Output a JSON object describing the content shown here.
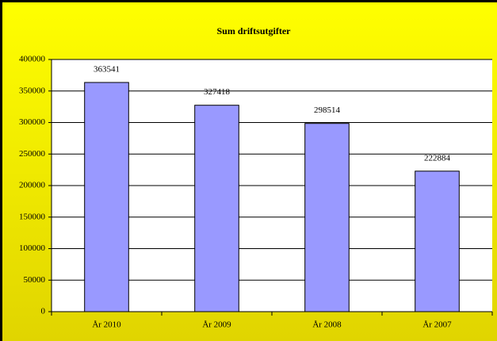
{
  "chart_data": {
    "type": "bar",
    "title": "Sum driftsutgifter",
    "categories": [
      "År 2010",
      "År 2009",
      "År 2008",
      "År 2007"
    ],
    "values": [
      363541,
      327418,
      298514,
      222884
    ],
    "color": "#9999ff",
    "ylim": [
      0,
      400000
    ],
    "yticks": [
      0,
      50000,
      100000,
      150000,
      200000,
      250000,
      300000,
      350000,
      400000
    ],
    "grid": true
  }
}
